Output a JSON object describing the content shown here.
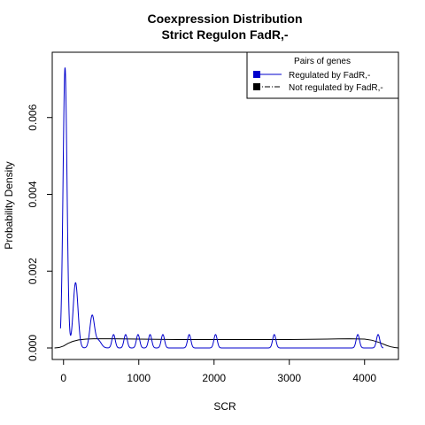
{
  "chart_data": {
    "type": "line",
    "title": "Coexpression Distribution",
    "subtitle": "Strict Regulon FadR,-",
    "xlabel": "SCR",
    "ylabel": "Probability Density",
    "xlim": [
      -150,
      4450
    ],
    "ylim": [
      -0.0003,
      0.0077
    ],
    "x_ticks": [
      0,
      1000,
      2000,
      3000,
      4000
    ],
    "x_tick_labels": [
      "0",
      "1000",
      "2000",
      "3000",
      "4000"
    ],
    "y_ticks": [
      0.0,
      0.002,
      0.004,
      0.006
    ],
    "y_tick_labels": [
      "0.000",
      "0.002",
      "0.004",
      "0.006"
    ],
    "grid": false,
    "legend": {
      "title": "Pairs of genes",
      "position": "top-right",
      "entries": [
        "Regulated by  FadR,-",
        "Not regulated by  FadR,-"
      ]
    },
    "series": [
      {
        "name": "Regulated by  FadR,-",
        "color": "#0000cc",
        "peaks": [
          {
            "x": 20,
            "y": 0.0073,
            "sd": 26
          },
          {
            "x": 160,
            "y": 0.0017,
            "sd": 32
          },
          {
            "x": 380,
            "y": 0.00083,
            "sd": 30
          },
          {
            "x": 460,
            "y": 0.0002,
            "sd": 40
          },
          {
            "x": 665,
            "y": 0.00035,
            "sd": 22
          },
          {
            "x": 825,
            "y": 0.00035,
            "sd": 22
          },
          {
            "x": 990,
            "y": 0.00035,
            "sd": 22
          },
          {
            "x": 1150,
            "y": 0.00035,
            "sd": 22
          },
          {
            "x": 1320,
            "y": 0.00035,
            "sd": 22
          },
          {
            "x": 1670,
            "y": 0.00035,
            "sd": 22
          },
          {
            "x": 2020,
            "y": 0.00035,
            "sd": 22
          },
          {
            "x": 2800,
            "y": 0.00035,
            "sd": 22
          },
          {
            "x": 3910,
            "y": 0.00035,
            "sd": 22
          },
          {
            "x": 4180,
            "y": 0.00035,
            "sd": 22
          }
        ],
        "x_range": [
          -40,
          4250
        ]
      },
      {
        "name": "Not regulated by  FadR,-",
        "color": "#000000",
        "x": [
          -120,
          -60,
          0,
          60,
          120,
          200,
          300,
          400,
          600,
          1000,
          1500,
          2000,
          2500,
          3000,
          3500,
          3800,
          4000,
          4100,
          4200,
          4300,
          4350,
          4400,
          4450
        ],
        "values": [
          0.0,
          1e-05,
          5e-05,
          0.00012,
          0.00017,
          0.00021,
          0.00023,
          0.00024,
          0.00024,
          0.00023,
          0.00022,
          0.00022,
          0.00022,
          0.00022,
          0.00023,
          0.00024,
          0.00023,
          0.0002,
          0.00014,
          6e-05,
          3e-05,
          1e-05,
          0.0
        ]
      }
    ]
  }
}
